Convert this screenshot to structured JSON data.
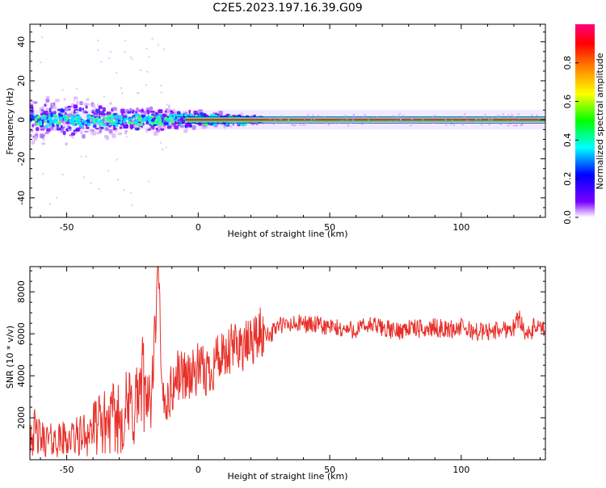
{
  "title": "C2E5.2023.197.16.39.G09",
  "chart_data": [
    {
      "type": "heatmap",
      "xlabel": "Height of straight line (km)",
      "ylabel": "Frequency (Hz)",
      "xlim": [
        -64,
        132
      ],
      "ylim": [
        -50,
        49
      ],
      "xticks": [
        -50,
        0,
        50,
        100
      ],
      "yticks": [
        -40,
        -20,
        0,
        20,
        40
      ],
      "colorbar": {
        "label": "Normalized spectral amplitude",
        "range": [
          0,
          1
        ],
        "ticks": [
          "0.0",
          "0.2",
          "0.4",
          "0.6",
          "0.8"
        ],
        "colormap": [
          "#ffffff",
          "#7a00ff",
          "#0000ff",
          "#00ffff",
          "#00ff00",
          "#ffff00",
          "#ff7f00",
          "#ff0000",
          "#ff0080"
        ]
      },
      "ridge": {
        "frequency_hz": 0,
        "spread_start_km": -64,
        "spread_end_km": 25
      }
    },
    {
      "type": "line",
      "xlabel": "Height of straight line (km)",
      "ylabel": "SNR (10 * v/v)",
      "xlim": [
        -64,
        132
      ],
      "ylim": [
        0,
        9200
      ],
      "xticks": [
        -50,
        0,
        50,
        100
      ],
      "yticks": [
        2000,
        4000,
        6000,
        8000
      ],
      "color": "#e8302a",
      "series": [
        {
          "x": [
            -64,
            -60,
            -55,
            -50,
            -45,
            -40,
            -35,
            -30,
            -25,
            -22,
            -20,
            -18,
            -16,
            -15,
            -14,
            -12,
            -10,
            -8,
            -5,
            -2,
            0,
            2,
            5,
            7,
            10,
            13,
            15,
            18,
            20,
            22,
            25,
            28,
            30,
            35,
            40,
            45,
            50,
            55,
            60,
            65,
            70,
            75,
            80,
            85,
            90,
            95,
            100,
            105,
            110,
            115,
            120,
            122,
            124,
            126,
            128,
            130,
            132
          ],
          "y": [
            1500,
            1000,
            900,
            1000,
            1100,
            1500,
            1800,
            2000,
            2500,
            3000,
            3500,
            2500,
            7000,
            9200,
            3000,
            2800,
            3300,
            4000,
            4100,
            4000,
            4300,
            4100,
            4300,
            5000,
            4600,
            5300,
            5600,
            5300,
            5700,
            5800,
            6100,
            6000,
            6400,
            6400,
            6500,
            6400,
            6300,
            6200,
            6200,
            6400,
            6300,
            6100,
            6300,
            6200,
            6300,
            6200,
            6300,
            6100,
            6100,
            6200,
            6300,
            6800,
            6200,
            5900,
            6400,
            6200,
            6100
          ]
        }
      ]
    }
  ]
}
